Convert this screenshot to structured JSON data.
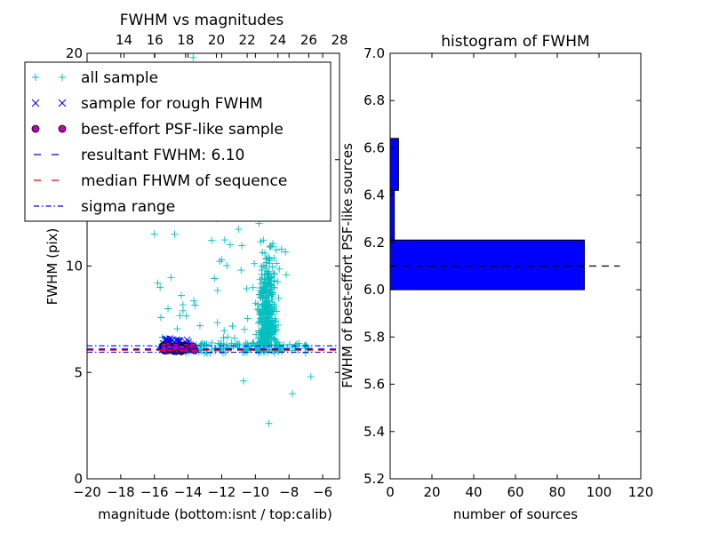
{
  "chart_data": [
    {
      "type": "scatter",
      "title": "FWHM vs magnitudes",
      "xlabel": "magnitude (bottom:isnt / top:calib)",
      "ylabel": "FWHM (pix)",
      "xlim": [
        -20,
        -5
      ],
      "ylim": [
        0,
        20
      ],
      "x_ticks": [
        -20,
        -18,
        -16,
        -14,
        -12,
        -10,
        -8,
        -6
      ],
      "x_tick_labels": [
        "−20",
        "−18",
        "−16",
        "−14",
        "−12",
        "−10",
        "−8",
        "−6"
      ],
      "y_ticks": [
        0,
        5,
        10,
        15,
        20
      ],
      "y_tick_labels": [
        "0",
        "5",
        "10",
        "15",
        "20"
      ],
      "top_xlim": [
        11.6,
        28
      ],
      "top_ticks": [
        14,
        16,
        18,
        20,
        22,
        24,
        26,
        28
      ],
      "top_tick_labels": [
        "14",
        "16",
        "18",
        "20",
        "22",
        "24",
        "26",
        "28"
      ],
      "legend_position": "upper-left",
      "legend": [
        {
          "label": "all sample",
          "marker": "plus",
          "color": "#00bfbf"
        },
        {
          "label": "sample for rough FWHM",
          "marker": "x",
          "color": "#0000ff"
        },
        {
          "label": "best-effort PSF-like sample",
          "marker": "circle",
          "color": "#bf00bf"
        },
        {
          "label": "resultant FWHM: 6.10",
          "marker": "dash",
          "color": "#0000ff"
        },
        {
          "label": "median FHWM of sequence",
          "marker": "dash",
          "color": "#ff0000"
        },
        {
          "label": "sigma range",
          "marker": "dashdot",
          "color": "#0000ff"
        }
      ],
      "lines": {
        "resultant_fwhm": 6.1,
        "median_fwhm": 6.05,
        "sigma_range": [
          5.95,
          6.25
        ]
      },
      "clusters": {
        "all_sample_band": {
          "x": [
            -15.8,
            -6.8
          ],
          "y": [
            5.9,
            6.4
          ],
          "count": 180
        },
        "all_sample_wide": {
          "x": [
            -10.5,
            -8.2
          ],
          "y": [
            5.2,
            15.5
          ],
          "count": 320
        },
        "all_sample_sparse": {
          "x": [
            -16.0,
            -8.0
          ],
          "y": [
            6.5,
            15.5
          ],
          "count": 80
        },
        "rough_sample": {
          "x": [
            -15.6,
            -13.8
          ],
          "y": [
            6.0,
            6.6
          ],
          "count": 40
        },
        "psf_sample": {
          "x": [
            -15.6,
            -13.6
          ],
          "y": [
            6.0,
            6.25
          ],
          "count": 50
        }
      },
      "outliers": [
        {
          "x": -13.7,
          "y": 19.8
        },
        {
          "x": -9.2,
          "y": 2.6
        },
        {
          "x": -10.7,
          "y": 4.6
        },
        {
          "x": -7.8,
          "y": 4.0
        },
        {
          "x": -6.7,
          "y": 4.8
        },
        {
          "x": -15.8,
          "y": 9.2
        },
        {
          "x": -16.0,
          "y": 11.5
        },
        {
          "x": -14.8,
          "y": 11.5
        },
        {
          "x": -12.0,
          "y": 10.3
        },
        {
          "x": -11.5,
          "y": 11.0
        },
        {
          "x": -12.6,
          "y": 11.2
        }
      ]
    },
    {
      "type": "bar",
      "orientation": "horizontal",
      "title": "histogram of FWHM",
      "xlabel": "number of sources",
      "ylabel": "FWHM of best-effort PSF-like sources",
      "xlim": [
        0,
        120
      ],
      "ylim": [
        5.2,
        7.0
      ],
      "x_ticks": [
        0,
        20,
        40,
        60,
        80,
        100,
        120
      ],
      "x_tick_labels": [
        "0",
        "20",
        "40",
        "60",
        "80",
        "100",
        "120"
      ],
      "y_ticks": [
        5.2,
        5.4,
        5.6,
        5.8,
        6.0,
        6.2,
        6.4,
        6.6,
        6.8,
        7.0
      ],
      "y_tick_labels": [
        "5.2",
        "5.4",
        "5.6",
        "5.8",
        "6.0",
        "6.2",
        "6.4",
        "6.6",
        "6.8",
        "7.0"
      ],
      "bins": [
        {
          "from": 6.0,
          "to": 6.21,
          "count": 93
        },
        {
          "from": 6.21,
          "to": 6.42,
          "count": 2
        },
        {
          "from": 6.42,
          "to": 6.64,
          "count": 4
        }
      ],
      "bar_color": "#0000ff",
      "reference_line": {
        "y": 6.1,
        "x_range": [
          0,
          110
        ],
        "style": "dashed",
        "color": "#000000"
      }
    }
  ]
}
